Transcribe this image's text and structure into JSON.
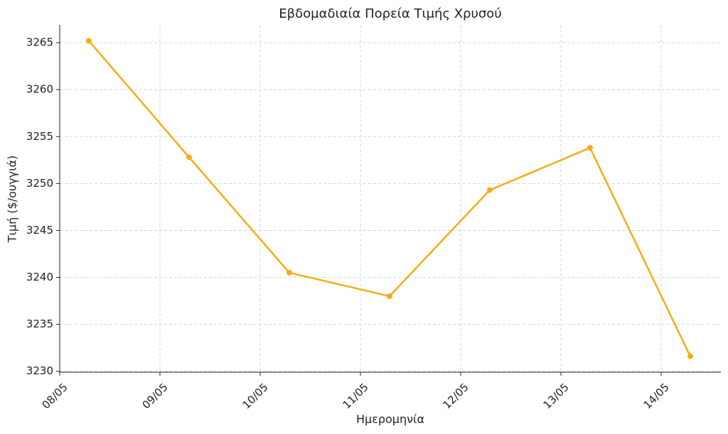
{
  "chart_data": {
    "type": "line",
    "title": "Εβδομαδιαία Πορεία Τιμής Χρυσού",
    "x_label": "Ημερομηνία",
    "y_label": "Τιμή ($/ουγγιά)",
    "categories": [
      "08/05",
      "09/05",
      "10/05",
      "11/05",
      "12/05",
      "13/05",
      "14/05"
    ],
    "series": [
      {
        "name": "Τιμή",
        "color": "#f7ac16",
        "values": [
          3265.2,
          3252.8,
          3240.5,
          3238.0,
          3249.3,
          3253.8,
          3231.6
        ]
      }
    ],
    "ylim": [
      3229.9,
      3266.9
    ],
    "yticks": [
      3230,
      3235,
      3240,
      3245,
      3250,
      3255,
      3260,
      3265
    ],
    "grid": true
  }
}
